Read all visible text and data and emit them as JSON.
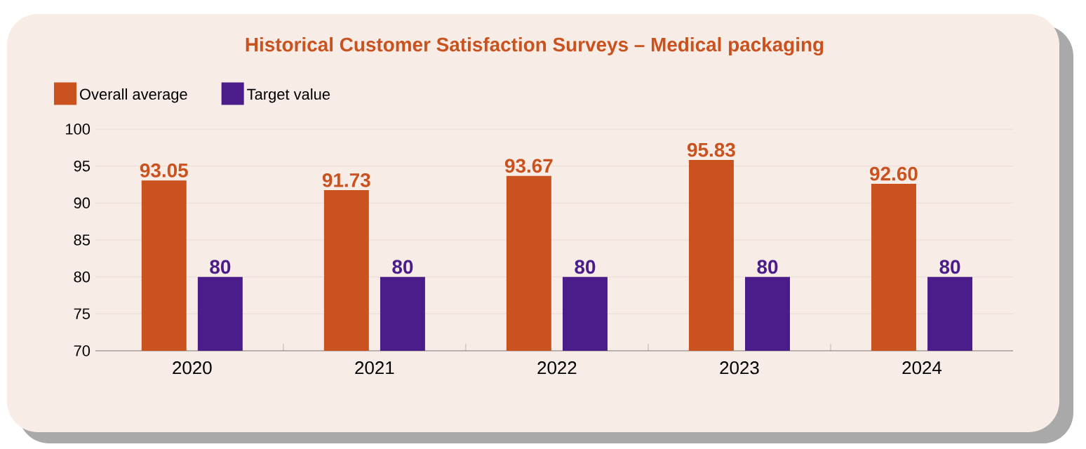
{
  "chart_data": {
    "type": "bar",
    "title": "Historical Customer Satisfaction Surveys – Medical packaging",
    "categories": [
      "2020",
      "2021",
      "2022",
      "2023",
      "2024"
    ],
    "series": [
      {
        "name": "Overall average",
        "color": "#c9521f",
        "values": [
          93.05,
          91.73,
          93.67,
          95.83,
          92.6
        ],
        "value_labels": [
          "93.05",
          "91.73",
          "93.67",
          "95.83",
          "92.60"
        ]
      },
      {
        "name": "Target value",
        "color": "#4a1d8a",
        "values": [
          80,
          80,
          80,
          80,
          80
        ],
        "value_labels": [
          "80",
          "80",
          "80",
          "80",
          "80"
        ]
      }
    ],
    "ylim": [
      70,
      100
    ],
    "yticks": [
      70,
      75,
      80,
      85,
      90,
      95,
      100
    ],
    "grid": "y",
    "legend": "top left"
  }
}
